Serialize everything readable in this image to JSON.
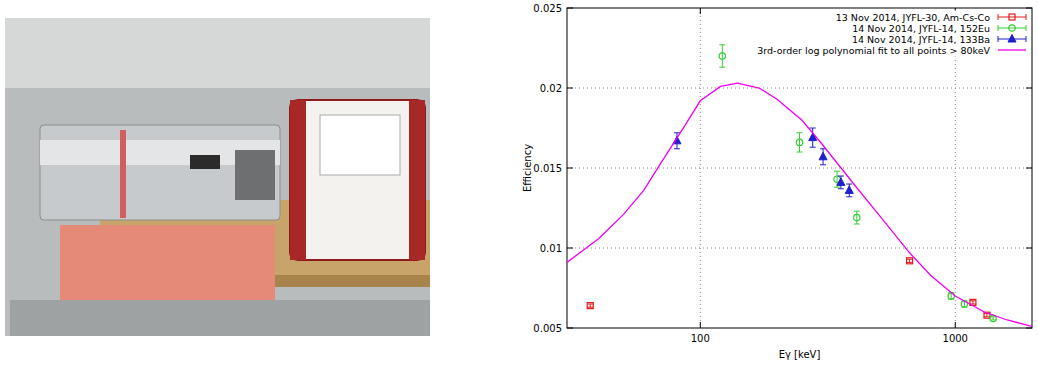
{
  "chart_data": {
    "type": "scatter",
    "x_label": "Eγ [keV]",
    "y_label": "Efficiency",
    "log": "x",
    "grid": true,
    "legend": "top-right",
    "xlim": [
      30,
      2000
    ],
    "ylim": [
      0.005,
      0.025
    ],
    "xticks": [
      100,
      1000
    ],
    "yticks": [
      0.005,
      0.01,
      0.015,
      0.02,
      0.025
    ],
    "series": [
      {
        "name": "13 Nov 2014, JYFL-30, Am-Cs-Co",
        "color": "#e41a1c",
        "marker": "square",
        "type": "scatter",
        "x": [
          37,
          662,
          1173,
          1332
        ],
        "values": [
          0.0064,
          0.0092,
          0.0066,
          0.0058
        ],
        "errors": [
          0.0001,
          0.0001,
          0.0001,
          0.0001
        ]
      },
      {
        "name": "14 Nov 2014, JYFL-14, 152Eu",
        "color": "#33cc33",
        "marker": "circle",
        "type": "scatter",
        "x": [
          122,
          245,
          344,
          411,
          964,
          1086,
          1408
        ],
        "values": [
          0.022,
          0.0166,
          0.0143,
          0.0119,
          0.007,
          0.0065,
          0.0056
        ],
        "errors": [
          0.0007,
          0.0006,
          0.0005,
          0.0004,
          0.0002,
          0.0002,
          0.0001
        ]
      },
      {
        "name": "14 Nov 2014, JYFL-14, 133Ba",
        "color": "#1f1fcc",
        "marker": "triangle",
        "type": "scatter",
        "x": [
          81,
          276,
          303,
          356,
          384
        ],
        "values": [
          0.0167,
          0.0169,
          0.0157,
          0.0141,
          0.0136
        ],
        "errors": [
          0.0005,
          0.0006,
          0.0005,
          0.0004,
          0.0004
        ]
      },
      {
        "name": "3rd-order log polynomial fit to all points > 80keV",
        "color": "#ee00ee",
        "type": "line",
        "line_style": "solid",
        "x": [
          30,
          40,
          50,
          60,
          70,
          85,
          100,
          120,
          140,
          170,
          200,
          250,
          300,
          400,
          500,
          662,
          800,
          1000,
          1300,
          1600,
          2000
        ],
        "values": [
          0.0091,
          0.0106,
          0.0121,
          0.0136,
          0.0153,
          0.0174,
          0.0192,
          0.0201,
          0.0203,
          0.02,
          0.0193,
          0.018,
          0.0165,
          0.014,
          0.0121,
          0.0097,
          0.0083,
          0.007,
          0.006,
          0.0055,
          0.0051
        ]
      }
    ]
  }
}
